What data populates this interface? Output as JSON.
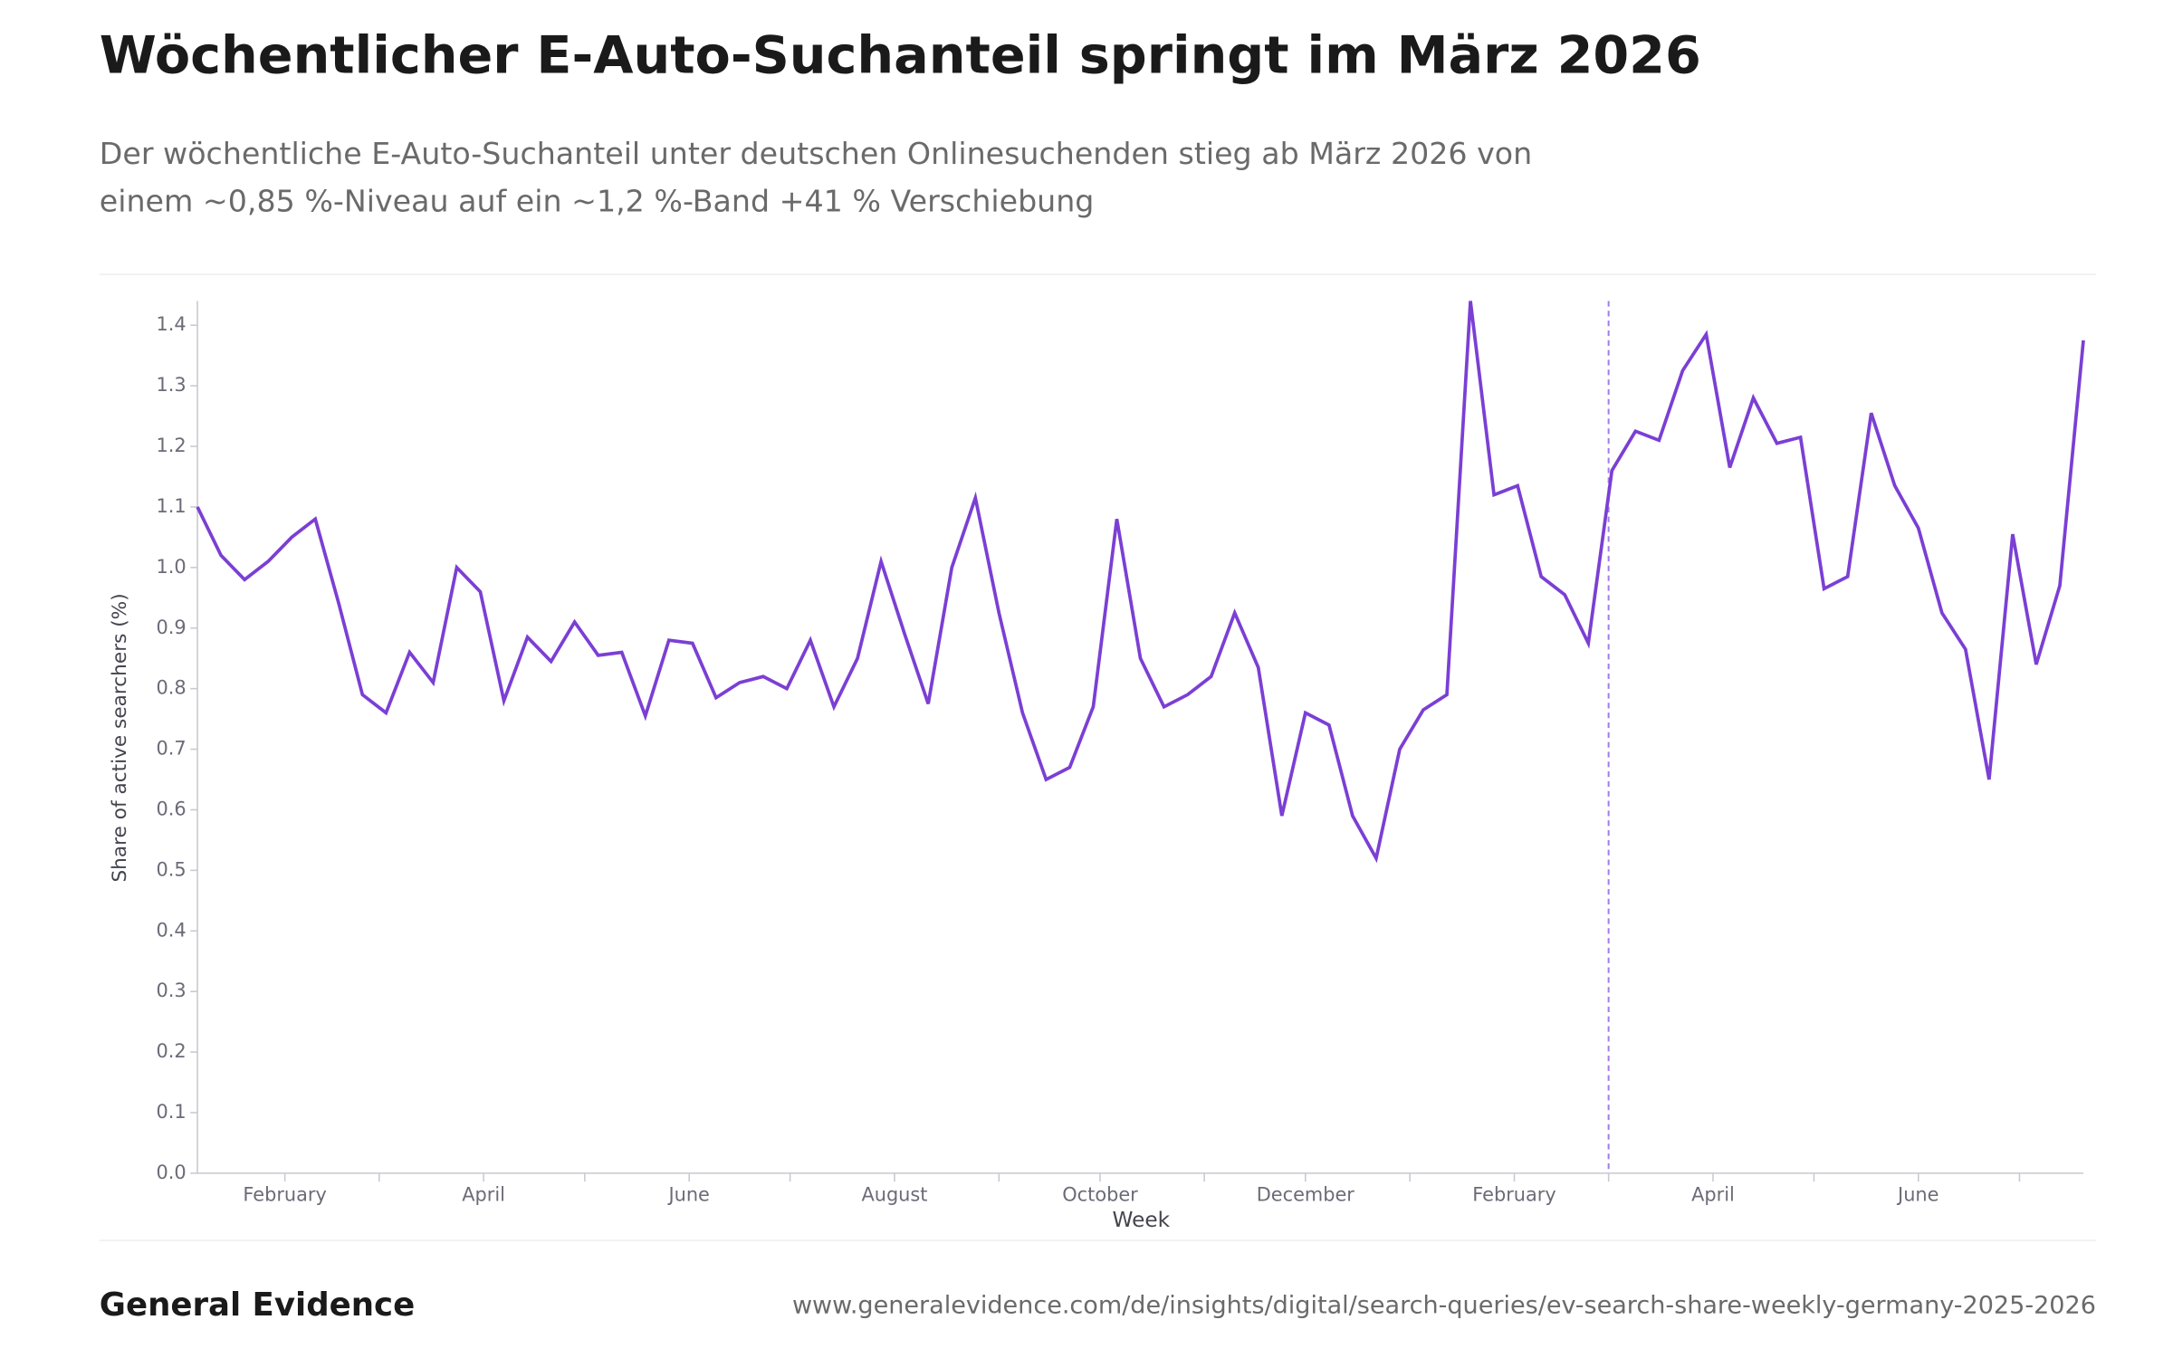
{
  "chart_data": {
    "type": "line",
    "title": "Wöchentlicher E-Auto-Suchanteil springt im März 2026",
    "subtitle": [
      "Der wöchentliche E-Auto-Suchanteil unter deutschen Onlinesuchenden stieg ab März 2026 von",
      "einem ~0,85 %-Niveau auf ein ~1,2 %-Band +41 % Verschiebung"
    ],
    "x_label": "Week",
    "y_label": "Share of active searchers (%)",
    "x": [
      0,
      1,
      2,
      3,
      4,
      5,
      6,
      7,
      8,
      9,
      10,
      11,
      12,
      13,
      14,
      15,
      16,
      17,
      18,
      19,
      20,
      21,
      22,
      23,
      24,
      25,
      26,
      27,
      28,
      29,
      30,
      31,
      32,
      33,
      34,
      35,
      36,
      37,
      38,
      39,
      40,
      41,
      42,
      43,
      44,
      45,
      46,
      47,
      48,
      49,
      50,
      51,
      52,
      53,
      54,
      55,
      56,
      57,
      58,
      59,
      60,
      61,
      62,
      63,
      64,
      65,
      66,
      67,
      68,
      69,
      70,
      71,
      72,
      73,
      74,
      75,
      76,
      77,
      78,
      79,
      80
    ],
    "series": [
      {
        "name": "Share of active searchers",
        "color": "#7b3fd4",
        "values": [
          1.1,
          1.02,
          0.98,
          1.01,
          1.05,
          1.08,
          0.94,
          0.79,
          0.76,
          0.86,
          0.81,
          1.0,
          0.96,
          0.78,
          0.885,
          0.845,
          0.91,
          0.855,
          0.86,
          0.755,
          0.88,
          0.875,
          0.785,
          0.81,
          0.82,
          0.8,
          0.88,
          0.77,
          0.85,
          1.01,
          0.89,
          0.775,
          1.0,
          1.115,
          0.925,
          0.76,
          0.65,
          0.67,
          0.77,
          1.08,
          0.85,
          0.77,
          0.79,
          0.82,
          0.925,
          0.835,
          0.59,
          0.76,
          0.74,
          0.59,
          0.52,
          0.7,
          0.765,
          0.79,
          1.44,
          1.12,
          1.135,
          0.985,
          0.955,
          0.875,
          1.16,
          1.225,
          1.21,
          1.325,
          1.385,
          1.165,
          1.28,
          1.205,
          1.215,
          0.965,
          0.985,
          1.255,
          1.135,
          1.065,
          0.925,
          0.865,
          0.65,
          1.055,
          0.84,
          0.97,
          1.375
        ]
      }
    ],
    "xlim": [
      0,
      80
    ],
    "xticks": [
      {
        "value": 3.71,
        "label": "February"
      },
      {
        "value": 12.14,
        "label": "April"
      },
      {
        "value": 20.86,
        "label": "June"
      },
      {
        "value": 29.57,
        "label": "August"
      },
      {
        "value": 38.29,
        "label": "October"
      },
      {
        "value": 47.0,
        "label": "December"
      },
      {
        "value": 55.86,
        "label": "February"
      },
      {
        "value": 64.29,
        "label": "April"
      },
      {
        "value": 73.0,
        "label": "June"
      }
    ],
    "xminorticks": [
      7.71,
      16.43,
      25.14,
      34.0,
      42.71,
      51.43,
      59.86,
      68.57,
      77.29
    ],
    "marker_x": 59.86,
    "marker_color": "#a57ce8",
    "ylim": [
      0,
      1.44
    ],
    "yticks": [
      {
        "value": 0,
        "label": "0.0"
      },
      0.1,
      0.2,
      0.3,
      0.4,
      0.5,
      0.6,
      0.7,
      0.8,
      0.9,
      {
        "value": 1,
        "label": "1.0"
      },
      1.1,
      1.2,
      1.3,
      1.4
    ],
    "grid": false
  },
  "footer": {
    "brand": "General Evidence",
    "url": "www.generalevidence.com/de/insights/digital/search-queries/ev-search-share-weekly-germany-2025-2026"
  }
}
